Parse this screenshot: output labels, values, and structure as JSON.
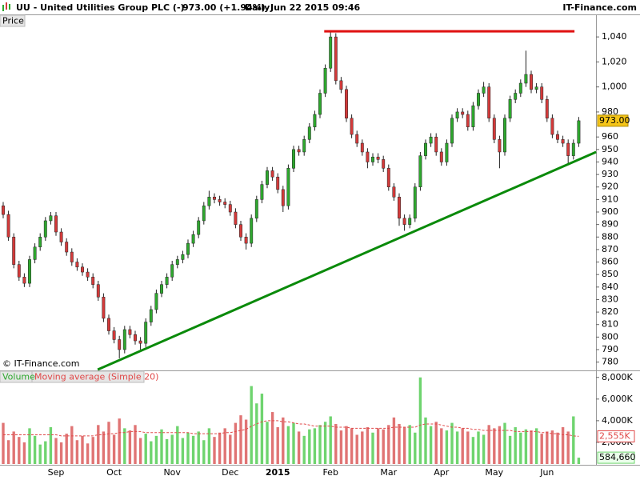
{
  "header": {
    "symbol": "UU - United Utilities Group PLC (-)",
    "quote": "973.00 (+1.94%)",
    "period": "Daily",
    "datetime": "Jun 22 2015 09:46",
    "brand": "IT-Finance.com"
  },
  "chart_data": [
    {
      "type": "candlestick",
      "legend_label": "Price",
      "watermark": "© IT-Finance.com",
      "last_label": "973.00",
      "up_color": "#2ea82e",
      "down_color": "#d43a3a",
      "categories": [
        null,
        null,
        null,
        null,
        null,
        null,
        null,
        null,
        null,
        null,
        "Sep",
        null,
        null,
        null,
        null,
        null,
        null,
        null,
        null,
        null,
        null,
        "Oct",
        null,
        null,
        null,
        null,
        null,
        null,
        null,
        null,
        null,
        null,
        "Nov",
        null,
        null,
        null,
        null,
        null,
        null,
        null,
        null,
        null,
        null,
        "Dec",
        null,
        null,
        null,
        null,
        null,
        null,
        null,
        null,
        "2015",
        null,
        null,
        null,
        null,
        null,
        null,
        null,
        null,
        null,
        "Feb",
        null,
        null,
        null,
        null,
        null,
        null,
        null,
        null,
        null,
        null,
        "Mar",
        null,
        null,
        null,
        null,
        null,
        null,
        null,
        null,
        null,
        "Apr",
        null,
        null,
        null,
        null,
        null,
        null,
        null,
        null,
        null,
        "May",
        null,
        null,
        null,
        null,
        null,
        null,
        null,
        null,
        null,
        "Jun",
        null,
        null,
        null,
        null,
        null,
        null
      ],
      "open": [
        905,
        898,
        880,
        858,
        848,
        843,
        862,
        872,
        880,
        893,
        897,
        884,
        876,
        868,
        860,
        856,
        852,
        848,
        842,
        832,
        815,
        805,
        798,
        790,
        806,
        802,
        797,
        795,
        812,
        822,
        835,
        842,
        848,
        858,
        862,
        866,
        875,
        882,
        893,
        905,
        912,
        910,
        908,
        906,
        900,
        890,
        880,
        875,
        895,
        910,
        922,
        933,
        928,
        918,
        905,
        935,
        950,
        948,
        958,
        968,
        978,
        995,
        1015,
        1040,
        1005,
        998,
        975,
        962,
        955,
        948,
        940,
        944,
        942,
        935,
        920,
        912,
        895,
        890,
        895,
        920,
        945,
        955,
        960,
        948,
        940,
        955,
        975,
        980,
        978,
        968,
        985,
        995,
        1000,
        975,
        958,
        948,
        975,
        990,
        995,
        1003,
        1010,
        998,
        1000,
        990,
        975,
        962,
        958,
        955,
        945,
        955
      ],
      "high": [
        908,
        901,
        883,
        861,
        851,
        865,
        875,
        883,
        896,
        900,
        900,
        887,
        879,
        871,
        863,
        859,
        855,
        851,
        845,
        835,
        818,
        808,
        801,
        809,
        809,
        805,
        800,
        815,
        825,
        838,
        845,
        851,
        861,
        865,
        869,
        878,
        885,
        896,
        908,
        917,
        915,
        913,
        911,
        909,
        903,
        893,
        883,
        898,
        913,
        925,
        936,
        936,
        931,
        921,
        938,
        953,
        953,
        961,
        971,
        981,
        998,
        1018,
        1044,
        1043,
        1008,
        1001,
        978,
        965,
        958,
        951,
        947,
        947,
        945,
        938,
        923,
        915,
        898,
        898,
        923,
        948,
        958,
        963,
        963,
        951,
        958,
        978,
        983,
        983,
        981,
        988,
        998,
        1004,
        1003,
        978,
        961,
        978,
        993,
        998,
        1006,
        1029,
        1013,
        1003,
        1003,
        993,
        978,
        965,
        961,
        958,
        958,
        976
      ],
      "low": [
        895,
        877,
        855,
        845,
        840,
        840,
        859,
        869,
        877,
        890,
        881,
        873,
        865,
        857,
        853,
        849,
        845,
        839,
        829,
        812,
        802,
        795,
        783,
        787,
        799,
        794,
        790,
        792,
        809,
        819,
        832,
        839,
        845,
        855,
        859,
        863,
        872,
        879,
        890,
        902,
        907,
        905,
        903,
        897,
        887,
        877,
        870,
        872,
        892,
        907,
        919,
        925,
        915,
        900,
        902,
        932,
        945,
        945,
        955,
        965,
        975,
        992,
        1012,
        1002,
        995,
        972,
        959,
        952,
        945,
        935,
        937,
        939,
        932,
        917,
        909,
        889,
        885,
        887,
        892,
        917,
        942,
        952,
        945,
        937,
        937,
        952,
        972,
        975,
        965,
        965,
        982,
        992,
        972,
        955,
        935,
        945,
        972,
        987,
        992,
        1000,
        995,
        995,
        987,
        972,
        959,
        955,
        952,
        938,
        942,
        952
      ],
      "close": [
        898,
        880,
        858,
        848,
        843,
        862,
        872,
        880,
        893,
        897,
        884,
        876,
        868,
        860,
        856,
        852,
        848,
        842,
        832,
        815,
        805,
        798,
        790,
        806,
        802,
        797,
        795,
        812,
        822,
        835,
        842,
        848,
        858,
        862,
        866,
        875,
        882,
        893,
        905,
        912,
        910,
        908,
        906,
        900,
        890,
        880,
        875,
        895,
        910,
        922,
        933,
        928,
        918,
        905,
        935,
        950,
        948,
        958,
        968,
        978,
        995,
        1015,
        1040,
        1005,
        998,
        975,
        962,
        955,
        948,
        940,
        944,
        942,
        935,
        920,
        912,
        895,
        890,
        895,
        920,
        945,
        955,
        960,
        948,
        940,
        955,
        975,
        980,
        978,
        968,
        985,
        995,
        1000,
        975,
        958,
        948,
        975,
        990,
        995,
        1003,
        1010,
        998,
        1000,
        990,
        975,
        962,
        958,
        955,
        945,
        955,
        973
      ],
      "ylim": [
        774,
        1058
      ],
      "yticks": [
        780,
        790,
        800,
        810,
        820,
        830,
        840,
        850,
        860,
        870,
        880,
        890,
        900,
        910,
        920,
        930,
        940,
        950,
        960,
        980,
        {
          "value": 1000,
          "label": "1,000"
        },
        {
          "value": 1020,
          "label": "1,020"
        },
        {
          "value": 1040,
          "label": "1,040"
        }
      ],
      "lines": [
        {
          "color": "#0a8a0a",
          "x": [
            17.9,
            112.3
          ],
          "y": [
            774,
            948
          ]
        },
        {
          "color": "#e01010",
          "x": [
            60.8,
            108.2
          ],
          "y": [
            1044.5,
            1044.5
          ]
        }
      ]
    },
    {
      "type": "bar",
      "up_color": "#6fd46f",
      "down_color": "#e07474",
      "series": [
        {
          "name": "Volume",
          "last_label": "584,660",
          "values": [
            3800,
            2200,
            3000,
            2500,
            2000,
            3300,
            2600,
            1800,
            2100,
            3400,
            2400,
            2000,
            2800,
            3500,
            2200,
            2600,
            1900,
            2500,
            3600,
            3000,
            3900,
            2700,
            4200,
            3300,
            3100,
            3600,
            2400,
            2800,
            2100,
            2600,
            3200,
            2300,
            2700,
            3500,
            2400,
            2900,
            2600,
            3000,
            2200,
            3300,
            2500,
            2900,
            3300,
            2700,
            3800,
            4500,
            4100,
            7200,
            5600,
            6500,
            3900,
            4800,
            3400,
            4300,
            3500,
            3800,
            3000,
            2600,
            3200,
            3300,
            3600,
            3900,
            4400,
            3700,
            3100,
            3500,
            3300,
            2700,
            3000,
            3400,
            2900,
            3300,
            3200,
            3600,
            4300,
            3700,
            3400,
            3600,
            2900,
            8000,
            4300,
            3500,
            3900,
            3300,
            3100,
            3800,
            3000,
            3300,
            3000,
            2500,
            3000,
            2700,
            3600,
            3300,
            3500,
            3800,
            2600,
            3400,
            2900,
            3200,
            3100,
            3300,
            2800,
            3000,
            3100,
            2900,
            3400,
            3000,
            4400,
            584.66
          ]
        },
        {
          "name": "Moving average (Simple 20)",
          "color": "#e04848",
          "last_label": "2,555K",
          "values": [
            2700,
            2700,
            2700,
            2700,
            2700,
            2700,
            2700,
            2700,
            2700,
            2700,
            2700,
            2600,
            2600,
            2600,
            2600,
            2600,
            2600,
            2600,
            2700,
            2700,
            2800,
            2800,
            2900,
            2900,
            3000,
            3000,
            3000,
            2900,
            2900,
            2900,
            2900,
            2900,
            2900,
            2900,
            2900,
            2900,
            2800,
            2800,
            2800,
            2800,
            2800,
            2800,
            2900,
            2900,
            3000,
            3100,
            3200,
            3500,
            3700,
            3900,
            4000,
            4000,
            4000,
            3900,
            3900,
            3800,
            3700,
            3700,
            3600,
            3500,
            3500,
            3500,
            3500,
            3400,
            3400,
            3400,
            3300,
            3300,
            3300,
            3300,
            3300,
            3300,
            3300,
            3300,
            3400,
            3400,
            3400,
            3400,
            3400,
            3600,
            3700,
            3700,
            3700,
            3600,
            3500,
            3400,
            3400,
            3300,
            3300,
            3200,
            3200,
            3100,
            3100,
            3100,
            3100,
            3100,
            3100,
            3000,
            3000,
            3000,
            3000,
            3000,
            2900,
            2900,
            2800,
            2800,
            2700,
            2700,
            2600,
            2555
          ]
        }
      ],
      "ylim": [
        0,
        8500
      ],
      "yticks": [
        {
          "value": 2000,
          "label": "2,000K"
        },
        {
          "value": 4000,
          "label": "4,000K"
        },
        {
          "value": 6000,
          "label": "6,000K"
        },
        {
          "value": 8000,
          "label": "8,000K"
        }
      ]
    }
  ]
}
